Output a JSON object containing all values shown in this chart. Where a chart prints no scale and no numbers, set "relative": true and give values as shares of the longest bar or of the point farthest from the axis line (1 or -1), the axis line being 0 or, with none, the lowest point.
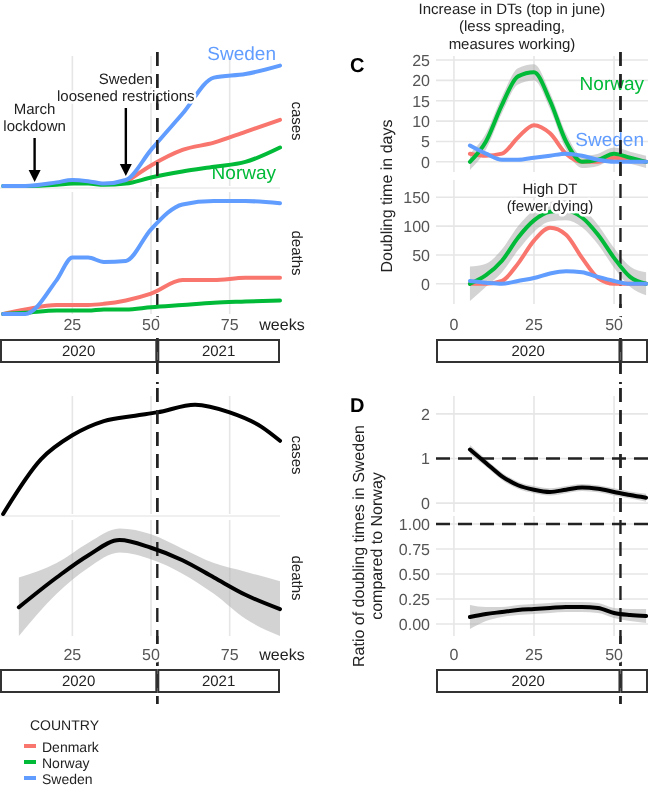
{
  "chart_data": [
    {
      "type": "line",
      "relative": true,
      "x": [
        3,
        10,
        20,
        25,
        30,
        35,
        42,
        50,
        60,
        70,
        80,
        91
      ],
      "xlim": [
        2,
        91
      ],
      "xticks": [
        25,
        50,
        75
      ],
      "tick_labels": false,
      "grid": "x",
      "series": [
        {
          "color": "#f8766d",
          "values": [
            null,
            null,
            null,
            null,
            null,
            null,
            0.03,
            0.17,
            0.3,
            0.36,
            0.45,
            0.55
          ]
        },
        {
          "name": "Norway",
          "color": "#00ba38",
          "values": [
            0,
            0,
            0.01,
            0.02,
            0.02,
            0.01,
            0.02,
            0.07,
            0.12,
            0.16,
            0.2,
            0.32
          ]
        },
        {
          "name": "Sweden",
          "color": "#619cff",
          "values": [
            0,
            0,
            0.03,
            0.05,
            0.04,
            0.02,
            0.05,
            0.3,
            0.6,
            0.9,
            0.93,
            1
          ]
        }
      ],
      "ref_lines": [
        {
          "axis": "x",
          "value": 52,
          "line_style": "dashed"
        }
      ],
      "annotations": [
        {
          "text": "March\nlockdown",
          "x": 13,
          "y": 0
        },
        {
          "text": "Sweden\nloosened restrictions",
          "x": 42,
          "y": 0.05
        },
        "cases"
      ]
    },
    {
      "type": "line",
      "relative": true,
      "x": [
        3,
        10,
        20,
        25,
        30,
        35,
        42,
        50,
        60,
        70,
        80,
        91
      ],
      "xlim": [
        2,
        91
      ],
      "xticks": [
        25,
        50,
        75
      ],
      "grid": "x",
      "xlabel": "weeks",
      "legend": "bottom",
      "legend_title": "COUNTRY",
      "series": [
        {
          "name": "Denmark",
          "color": "#f8766d",
          "values": [
            0,
            0.04,
            0.08,
            0.08,
            0.08,
            0.09,
            0.12,
            0.18,
            0.3,
            0.3,
            0.32,
            0.32
          ]
        },
        {
          "name": "Norway",
          "color": "#00ba38",
          "values": [
            0,
            0.01,
            0.03,
            0.03,
            0.03,
            0.04,
            0.04,
            0.06,
            0.08,
            0.1,
            0.11,
            0.12
          ]
        },
        {
          "name": "Sweden",
          "color": "#619cff",
          "values": [
            0,
            0,
            0.3,
            0.5,
            0.5,
            0.46,
            0.47,
            0.75,
            0.97,
            1,
            1,
            0.98
          ]
        }
      ],
      "ref_lines": [
        {
          "axis": "x",
          "value": 52,
          "line_style": "dashed"
        }
      ],
      "annotations": [
        "deaths",
        "2020",
        "2021"
      ]
    },
    {
      "type": "line",
      "relative": true,
      "x": [
        3,
        15,
        25,
        35,
        45,
        52,
        64,
        75,
        85,
        91
      ],
      "xlim": [
        2,
        91
      ],
      "xticks": [
        25,
        50,
        75
      ],
      "tick_labels": false,
      "grid": "x",
      "series": [
        {
          "color": "#000000",
          "values": [
            0,
            0.5,
            0.72,
            0.85,
            0.9,
            0.93,
            1,
            0.93,
            0.8,
            0.67
          ]
        }
      ],
      "ref_lines": [
        {
          "axis": "x",
          "value": 52,
          "line_style": "dashed"
        }
      ],
      "annotations": [
        "cases"
      ]
    },
    {
      "type": "line",
      "relative": true,
      "x": [
        8,
        20,
        30,
        40,
        50,
        60,
        70,
        80,
        91
      ],
      "xlim": [
        2,
        91
      ],
      "xticks": [
        25,
        50,
        75
      ],
      "grid": "x",
      "xlabel": "weeks",
      "series": [
        {
          "color": "#000000",
          "values": [
            0.3,
            0.61,
            0.84,
            1,
            0.92,
            0.79,
            0.61,
            0.43,
            0.28
          ],
          "lower": [
            0,
            0.44,
            0.71,
            0.87,
            0.8,
            0.65,
            0.44,
            0.18,
            0
          ],
          "upper": [
            0.61,
            0.76,
            0.97,
            1.12,
            1.06,
            0.91,
            0.76,
            0.67,
            0.57
          ]
        }
      ],
      "ref_lines": [
        {
          "axis": "x",
          "value": 52,
          "line_style": "dashed"
        }
      ],
      "annotations": [
        "deaths",
        "2020",
        "2021"
      ]
    },
    {
      "type": "line",
      "title": "C",
      "ylabel": "Doubling time in days",
      "x": [
        5,
        10,
        15,
        20,
        25,
        30,
        35,
        40,
        45,
        50,
        55,
        60
      ],
      "xlim": [
        -5.6,
        60.6
      ],
      "xticks": [
        0,
        25,
        50
      ],
      "ylim": [
        -2.5,
        26
      ],
      "yticks": [
        0,
        5,
        10,
        15,
        20,
        25
      ],
      "tick_labels": "y",
      "grid": true,
      "series": [
        {
          "color": "#f8766d",
          "values": [
            2,
            1.5,
            2,
            6,
            9,
            7,
            2,
            0,
            0,
            1,
            0.5,
            0
          ]
        },
        {
          "name": "Norway",
          "color": "#00ba38",
          "values": [
            0,
            5,
            14,
            21,
            22,
            15,
            5,
            0,
            0.5,
            2,
            1,
            0
          ],
          "lower": [
            -2,
            3,
            12,
            19,
            20,
            13,
            3,
            -1.5,
            -1,
            0.5,
            -0.5,
            -1.5
          ],
          "upper": [
            2,
            7,
            16,
            23,
            24,
            17,
            7,
            1.5,
            2,
            3.5,
            2.5,
            1.5
          ]
        },
        {
          "name": "Sweden",
          "color": "#619cff",
          "values": [
            4,
            2,
            0.5,
            0.5,
            1,
            1.5,
            2,
            1.5,
            0.5,
            0,
            0,
            0
          ]
        }
      ],
      "ref_lines": [
        {
          "axis": "x",
          "value": 52,
          "line_style": "dashed"
        }
      ],
      "annotations": [
        "Increase in DTs (top in june)\n(less spreading,\nmeasures working)"
      ]
    },
    {
      "type": "line",
      "x": [
        5,
        10,
        15,
        20,
        25,
        30,
        35,
        40,
        45,
        50,
        55,
        60
      ],
      "xlim": [
        -5.6,
        60.6
      ],
      "xticks": [
        0,
        25,
        50
      ],
      "ylim": [
        -35,
        180
      ],
      "yticks": [
        0,
        50,
        100,
        150
      ],
      "grid": true,
      "series": [
        {
          "color": "#f8766d",
          "values": [
            0,
            0,
            5,
            35,
            75,
            97,
            85,
            45,
            10,
            0,
            0,
            0
          ]
        },
        {
          "color": "#00ba38",
          "values": [
            0,
            15,
            40,
            80,
            110,
            125,
            127,
            115,
            85,
            45,
            12,
            0
          ],
          "lower": [
            -30,
            -5,
            20,
            58,
            90,
            108,
            110,
            98,
            68,
            28,
            -5,
            -20
          ],
          "upper": [
            30,
            35,
            60,
            100,
            128,
            142,
            145,
            132,
            102,
            62,
            30,
            20
          ]
        },
        {
          "color": "#619cff",
          "values": [
            5,
            2,
            0,
            5,
            10,
            18,
            22,
            20,
            12,
            5,
            0,
            0
          ]
        }
      ],
      "ref_lines": [
        {
          "axis": "x",
          "value": 52,
          "line_style": "dashed"
        }
      ],
      "annotations": [
        "High DT\n(fewer dying)",
        "2020"
      ]
    },
    {
      "type": "line",
      "title": "D",
      "ylabel": "Ratio of doubling times in Sweden\ncompared to Norway",
      "x": [
        5,
        10,
        15,
        20,
        25,
        30,
        35,
        40,
        45,
        50,
        55,
        60
      ],
      "xlim": [
        -5.6,
        60.6
      ],
      "xticks": [
        0,
        25,
        50
      ],
      "ylim": [
        -0.2,
        2.4
      ],
      "yticks": [
        0,
        1,
        2
      ],
      "tick_labels": "y",
      "grid": true,
      "series": [
        {
          "color": "#000000",
          "values": [
            1.2,
            0.9,
            0.6,
            0.4,
            0.3,
            0.25,
            0.3,
            0.35,
            0.32,
            0.25,
            0.18,
            0.12
          ],
          "lower": [
            1.1,
            0.82,
            0.52,
            0.32,
            0.22,
            0.17,
            0.22,
            0.27,
            0.24,
            0.17,
            0.1,
            0.03
          ],
          "upper": [
            1.3,
            0.98,
            0.68,
            0.48,
            0.38,
            0.33,
            0.38,
            0.43,
            0.4,
            0.33,
            0.26,
            0.21
          ]
        }
      ],
      "ref_lines": [
        {
          "axis": "x",
          "value": 52,
          "line_style": "dashed"
        },
        {
          "axis": "y",
          "value": 1,
          "line_style": "dashed"
        }
      ]
    },
    {
      "type": "line",
      "x": [
        5,
        10,
        15,
        20,
        25,
        30,
        35,
        40,
        45,
        50,
        55,
        60
      ],
      "xlim": [
        -5.6,
        60.6
      ],
      "xticks": [
        0,
        25,
        50
      ],
      "ylim": [
        -0.12,
        1.08
      ],
      "yticks": [
        {
          "value": 0,
          "label": "0.00"
        },
        {
          "value": 0.25,
          "label": "0.25"
        },
        {
          "value": 0.5,
          "label": "0.50"
        },
        {
          "value": 0.75,
          "label": "0.75"
        },
        {
          "value": 1,
          "label": "1.00"
        }
      ],
      "grid": true,
      "series": [
        {
          "color": "#000000",
          "values": [
            0.07,
            0.1,
            0.12,
            0.14,
            0.15,
            0.16,
            0.17,
            0.17,
            0.16,
            0.11,
            0.09,
            0.08
          ],
          "lower": [
            -0.05,
            0.03,
            0.07,
            0.09,
            0.1,
            0.11,
            0.12,
            0.12,
            0.11,
            0.06,
            0.03,
            0.01
          ],
          "upper": [
            0.19,
            0.17,
            0.17,
            0.19,
            0.2,
            0.21,
            0.22,
            0.22,
            0.21,
            0.16,
            0.15,
            0.15
          ]
        }
      ],
      "ref_lines": [
        {
          "axis": "x",
          "value": 52,
          "line_style": "dashed"
        },
        {
          "axis": "y",
          "value": 1,
          "line_style": "dashed"
        }
      ],
      "annotations": [
        "2020"
      ]
    }
  ]
}
